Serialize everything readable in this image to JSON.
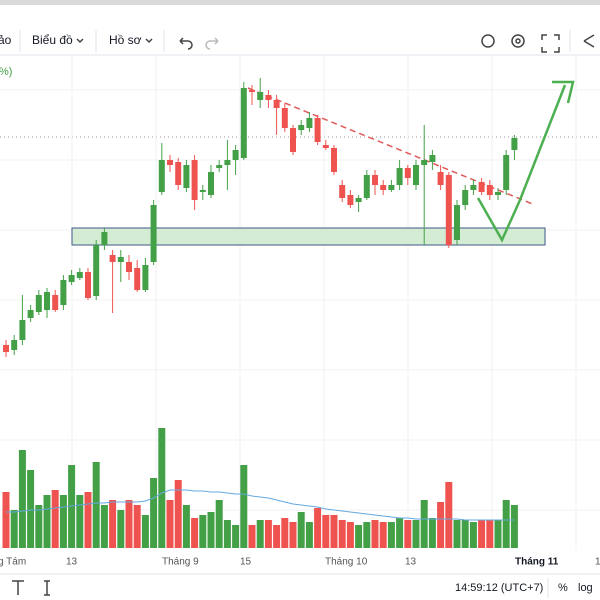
{
  "toolbar": {
    "items": [
      "ảo",
      "Biểu đồ",
      "Hồ sơ"
    ]
  },
  "legend_fragment": "%)",
  "chart_data": {
    "type": "candlestick",
    "x_labels": [
      "g Tám",
      "13",
      "Tháng 9",
      "15",
      "Tháng 10",
      "13",
      "Tháng 11",
      "1"
    ],
    "ylim": [
      40,
      340
    ],
    "up_color": "#43a047",
    "down_color": "#ef5350",
    "open": [
      55,
      50,
      60,
      82,
      88,
      90,
      105,
      95,
      118,
      122,
      128,
      104,
      155,
      145,
      138,
      138,
      132,
      110,
      138,
      208,
      240,
      238,
      212,
      240,
      208,
      205,
      232,
      235,
      240,
      242,
      310,
      300,
      305,
      300,
      292,
      272,
      270,
      272,
      282,
      255,
      252,
      215,
      205,
      198,
      202,
      225,
      215,
      210,
      215,
      232,
      215,
      235,
      238,
      228,
      225,
      160,
      195,
      210,
      218,
      215,
      205,
      210,
      250
    ],
    "high": [
      60,
      65,
      105,
      95,
      110,
      112,
      110,
      125,
      130,
      132,
      132,
      160,
      172,
      150,
      150,
      145,
      140,
      142,
      200,
      257,
      245,
      242,
      240,
      245,
      215,
      235,
      240,
      260,
      255,
      318,
      315,
      322,
      310,
      305,
      297,
      275,
      280,
      288,
      285,
      260,
      255,
      220,
      210,
      205,
      230,
      230,
      220,
      220,
      240,
      235,
      240,
      275,
      250,
      235,
      228,
      200,
      215,
      220,
      222,
      220,
      212,
      250,
      265
    ],
    "low": [
      43,
      45,
      55,
      78,
      85,
      82,
      88,
      90,
      115,
      120,
      100,
      100,
      150,
      87,
      118,
      120,
      108,
      108,
      135,
      205,
      228,
      210,
      208,
      190,
      200,
      202,
      228,
      210,
      225,
      240,
      295,
      292,
      292,
      265,
      268,
      245,
      265,
      268,
      255,
      250,
      225,
      198,
      192,
      188,
      200,
      205,
      205,
      208,
      210,
      215,
      210,
      155,
      230,
      210,
      152,
      155,
      190,
      205,
      205,
      200,
      200,
      205,
      240
    ],
    "close": [
      48,
      60,
      80,
      90,
      105,
      108,
      90,
      120,
      125,
      128,
      102,
      155,
      168,
      138,
      143,
      128,
      110,
      135,
      195,
      240,
      235,
      215,
      235,
      200,
      210,
      228,
      235,
      240,
      250,
      312,
      308,
      308,
      300,
      292,
      272,
      248,
      275,
      282,
      258,
      252,
      228,
      202,
      195,
      202,
      225,
      215,
      210,
      215,
      232,
      222,
      235,
      240,
      245,
      215,
      155,
      195,
      210,
      215,
      208,
      205,
      208,
      245,
      262
    ],
    "volume": {
      "ylim": [
        0,
        150
      ],
      "values": [
        56,
        38,
        98,
        78,
        43,
        53,
        58,
        53,
        83,
        53,
        56,
        86,
        43,
        48,
        38,
        48,
        43,
        33,
        70,
        120,
        48,
        68,
        43,
        30,
        33,
        36,
        48,
        28,
        23,
        83,
        23,
        28,
        28,
        23,
        30,
        26,
        36,
        26,
        40,
        33,
        33,
        28,
        26,
        23,
        26,
        28,
        26,
        26,
        30,
        28,
        28,
        48,
        30,
        46,
        66,
        28,
        28,
        26,
        28,
        28,
        28,
        48,
        43
      ],
      "ma_color": "#64a8e0",
      "ma": [
        36,
        36,
        37,
        38,
        38,
        39,
        40,
        41,
        42,
        43,
        44,
        45,
        45,
        46,
        46,
        46,
        46,
        47,
        50,
        55,
        58,
        58,
        58,
        57,
        57,
        56,
        56,
        55,
        54,
        54,
        52,
        51,
        50,
        48,
        46,
        44,
        43,
        42,
        41,
        39,
        38,
        37,
        36,
        35,
        34,
        33,
        32,
        31,
        30,
        30,
        29,
        29,
        29,
        29,
        29,
        29,
        28,
        28,
        28,
        28,
        28,
        28,
        28
      ]
    }
  },
  "status": {
    "time": "14:59:12 (UTC+7)",
    "percent": "%",
    "log": "log"
  }
}
